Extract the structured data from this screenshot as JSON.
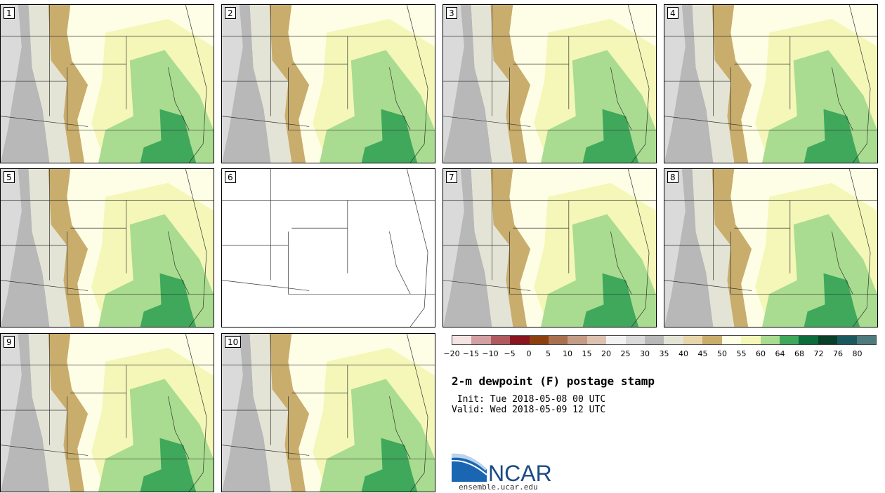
{
  "title": "2-m dewpoint (F) postage stamp",
  "init_time": " Init: Tue 2018-05-08 00 UTC",
  "valid_time": "Valid: Wed 2018-05-09 12 UTC",
  "logo_text": "NCAR",
  "logo_url": "ensemble.ucar.edu",
  "panels": [
    {
      "label": "1",
      "has_data": true
    },
    {
      "label": "2",
      "has_data": true
    },
    {
      "label": "3",
      "has_data": true
    },
    {
      "label": "4",
      "has_data": true
    },
    {
      "label": "5",
      "has_data": true
    },
    {
      "label": "6",
      "has_data": false
    },
    {
      "label": "7",
      "has_data": true
    },
    {
      "label": "8",
      "has_data": true
    },
    {
      "label": "9",
      "has_data": true
    },
    {
      "label": "10",
      "has_data": true
    }
  ],
  "colorbar": {
    "tick_labels": [
      "−20",
      "−15",
      "−10",
      "−5",
      "0",
      "5",
      "10",
      "15",
      "20",
      "25",
      "30",
      "35",
      "40",
      "45",
      "50",
      "55",
      "60",
      "64",
      "68",
      "72",
      "76",
      "80"
    ],
    "colors": [
      "#f3e3e3",
      "#d2a0a2",
      "#b05a5f",
      "#8a1420",
      "#8c400f",
      "#a8704e",
      "#c49c86",
      "#ddc2b0",
      "#f2f2f2",
      "#dadada",
      "#b8b8b8",
      "#e4e4d6",
      "#e6d6aa",
      "#c9ad6c",
      "#fefee6",
      "#f4f7b8",
      "#a9dc90",
      "#3fa85b",
      "#0c6c3c",
      "#08402a",
      "#1a5a5e",
      "#4e7a7e"
    ]
  },
  "map_colors": {
    "grey_dark": "#b8b8b8",
    "grey_light": "#dadada",
    "tan_light": "#e4e4d6",
    "tan": "#e6d6aa",
    "tan_dark": "#c9ad6c",
    "cream": "#fefee6",
    "yellow_green": "#f4f7b8",
    "green_light": "#a9dc90",
    "green": "#3fa85b"
  }
}
